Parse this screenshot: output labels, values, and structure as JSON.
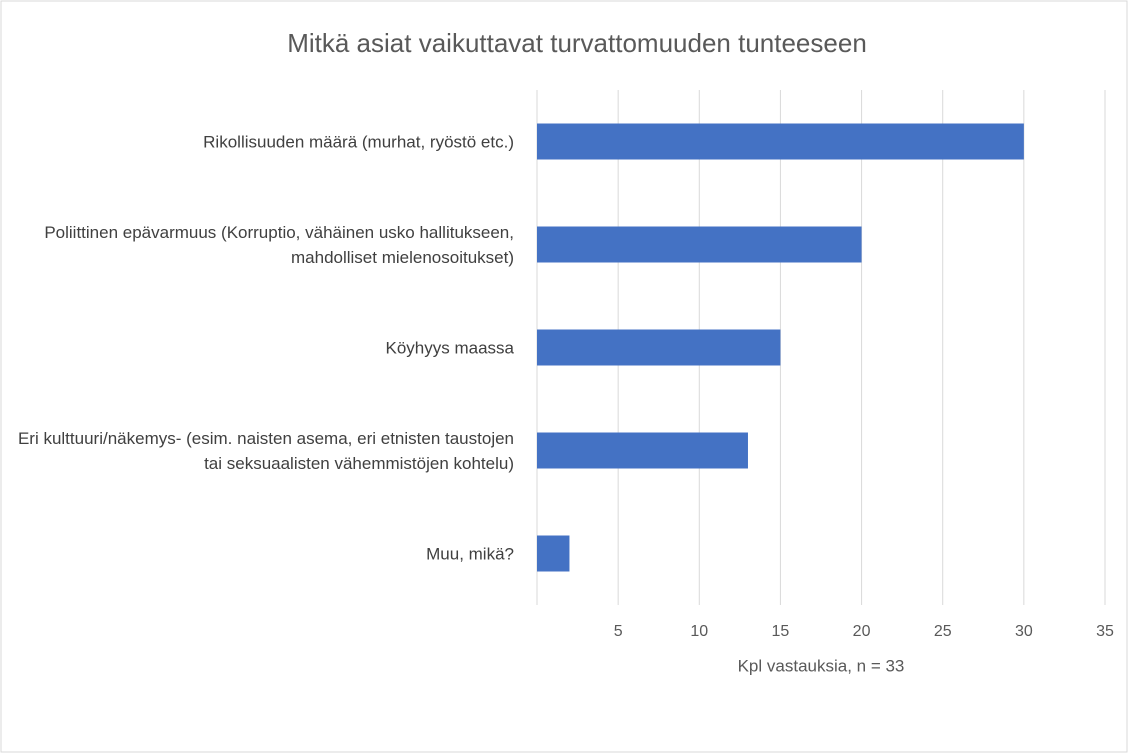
{
  "chart_data": {
    "type": "bar",
    "orientation": "horizontal",
    "title": "Mitkä asiat vaikuttavat turvattomuuden tunteeseen",
    "x_label": "Kpl vastauksia, n = 33",
    "categories": [
      "Rikollisuuden määrä (murhat, ryöstö etc.)",
      "Poliittinen epävarmuus (Korruptio, vähäinen usko hallitukseen, mahdolliset mielenosoitukset)",
      "Köyhyys maassa",
      "Eri kulttuuri/näkemys- (esim. naisten asema, eri etnisten taustojen tai seksuaalisten vähemmistöjen kohtelu)",
      "Muu, mikä?"
    ],
    "values": [
      30,
      20,
      15,
      13,
      2
    ],
    "color": "#4472c4",
    "xlim": [
      0,
      35
    ],
    "xticks": [
      5,
      10,
      15,
      20,
      25,
      30,
      35
    ],
    "grid": true
  }
}
